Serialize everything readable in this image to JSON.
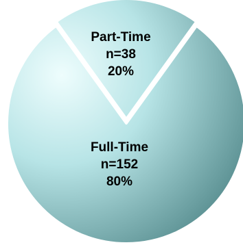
{
  "chart_data": {
    "type": "pie",
    "categories": [
      "Part-Time",
      "Full-Time"
    ],
    "values": [
      38,
      152
    ],
    "percentages": [
      20,
      80
    ],
    "slices": [
      {
        "name": "Part-Time",
        "count": 38,
        "percent": 20,
        "label_lines": [
          "Part-Time",
          "n=38",
          "20%"
        ]
      },
      {
        "name": "Full-Time",
        "count": 152,
        "percent": 80,
        "label_lines": [
          "Full-Time",
          "n=152",
          "80%"
        ]
      }
    ],
    "colors": {
      "light": "#eefdfd",
      "mid": "#b7e4e6",
      "dark": "#5f9496",
      "separator": "#ffffff"
    },
    "title": "",
    "legend": "none",
    "style": "3d-shaded"
  }
}
